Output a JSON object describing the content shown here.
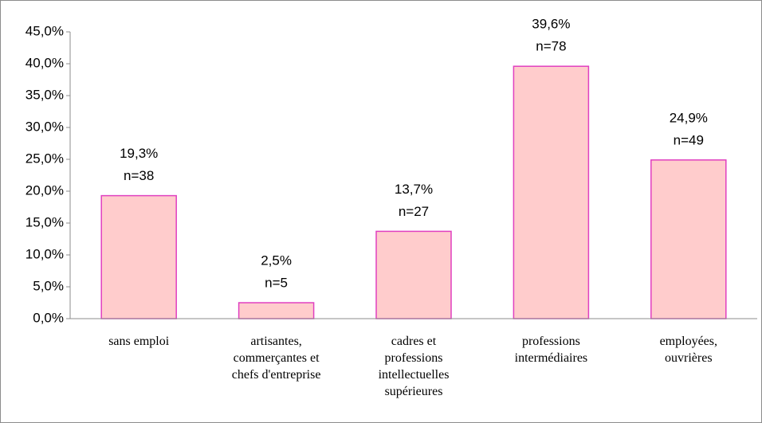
{
  "chart_data": {
    "type": "bar",
    "categories": [
      "sans emploi",
      "artisantes, commerçantes et chefs d'entreprise",
      "cadres et professions intellectuelles supérieures",
      "professions intermédiaires",
      "employées, ouvrières"
    ],
    "values": [
      19.3,
      2.5,
      13.7,
      39.6,
      24.9
    ],
    "value_labels": [
      "19,3%",
      "2,5%",
      "13,7%",
      "39,6%",
      "24,9%"
    ],
    "count_labels": [
      "n=38",
      "n=5",
      "n=27",
      "n=78",
      "n=49"
    ],
    "color": "#ffcccc",
    "edge_color": "#e040c0",
    "ylim": [
      0,
      45
    ],
    "yticks": [
      {
        "value": 0,
        "label": "0,0%"
      },
      {
        "value": 5,
        "label": "5,0%"
      },
      {
        "value": 10,
        "label": "10,0%"
      },
      {
        "value": 15,
        "label": "15,0%"
      },
      {
        "value": 20,
        "label": "20,0%"
      },
      {
        "value": 25,
        "label": "25,0%"
      },
      {
        "value": 30,
        "label": "30,0%"
      },
      {
        "value": 35,
        "label": "35,0%"
      },
      {
        "value": 40,
        "label": "40,0%"
      },
      {
        "value": 45,
        "label": "45,0%"
      }
    ],
    "grid": false
  }
}
